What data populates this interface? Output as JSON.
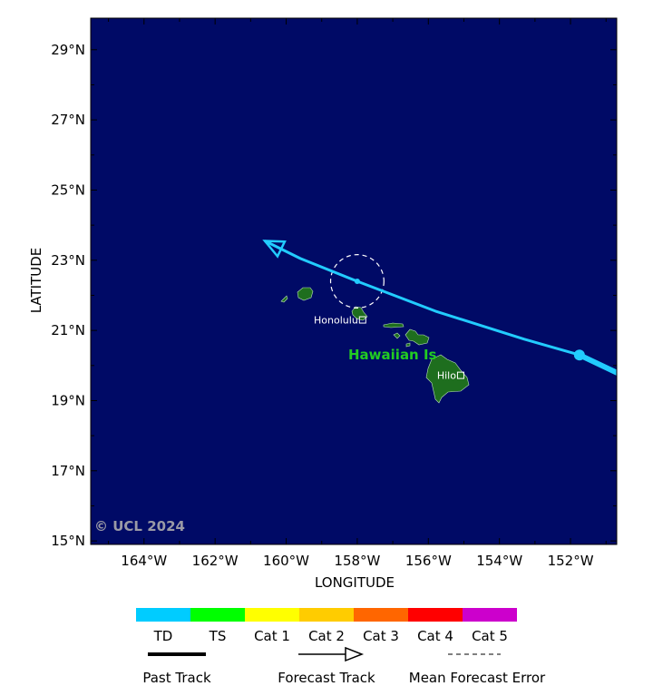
{
  "map": {
    "lon_range": [
      -165.5,
      -150.7
    ],
    "lat_range": [
      14.9,
      29.9
    ],
    "ocean_color": "#000a66",
    "land_color": "#1e6e1e",
    "track_color": "#22ccff",
    "lat_ticks": [
      {
        "value": 29,
        "label": "29°N"
      },
      {
        "value": 27,
        "label": "27°N"
      },
      {
        "value": 25,
        "label": "25°N"
      },
      {
        "value": 23,
        "label": "23°N"
      },
      {
        "value": 21,
        "label": "21°N"
      },
      {
        "value": 19,
        "label": "19°N"
      },
      {
        "value": 17,
        "label": "17°N"
      },
      {
        "value": 15,
        "label": "15°N"
      }
    ],
    "lon_ticks": [
      {
        "value": -164,
        "label": "164°W"
      },
      {
        "value": -162,
        "label": "162°W"
      },
      {
        "value": -160,
        "label": "160°W"
      },
      {
        "value": -158,
        "label": "158°W"
      },
      {
        "value": -156,
        "label": "156°W"
      },
      {
        "value": -154,
        "label": "154°W"
      },
      {
        "value": -152,
        "label": "152°W"
      }
    ],
    "xlabel": "LONGITUDE",
    "ylabel": "LATITUDE",
    "copyright": "© UCL 2024",
    "region_label": "Hawaiian Is",
    "places": [
      {
        "name": "Honolulu",
        "lon": -157.85,
        "lat": 21.3
      },
      {
        "name": "Hilo",
        "lon": -155.09,
        "lat": 19.72
      }
    ],
    "past_track": [
      [
        -150.5,
        19.7
      ],
      [
        -151.75,
        20.3
      ]
    ],
    "forecast_track": [
      [
        -151.75,
        20.3
      ],
      [
        -153.3,
        20.75
      ],
      [
        -155.8,
        21.55
      ],
      [
        -158.0,
        22.4
      ],
      [
        -159.6,
        23.05
      ],
      [
        -160.6,
        23.55
      ]
    ],
    "track_points": [
      [
        -151.75,
        20.3
      ],
      [
        -158.0,
        22.4
      ]
    ],
    "error_circle": {
      "lon": -158.0,
      "lat": 22.4,
      "radius_deg": 0.75
    }
  },
  "legend": {
    "categories": [
      {
        "label": "TD",
        "color": "#00ccff"
      },
      {
        "label": "TS",
        "color": "#00ff00"
      },
      {
        "label": "Cat 1",
        "color": "#ffff00"
      },
      {
        "label": "Cat 2",
        "color": "#ffcc00"
      },
      {
        "label": "Cat 3",
        "color": "#ff6600"
      },
      {
        "label": "Cat 4",
        "color": "#ff0000"
      },
      {
        "label": "Cat 5",
        "color": "#cc00cc"
      }
    ],
    "past_track_label": "Past Track",
    "forecast_track_label": "Forecast Track",
    "error_label": "Mean Forecast Error"
  }
}
